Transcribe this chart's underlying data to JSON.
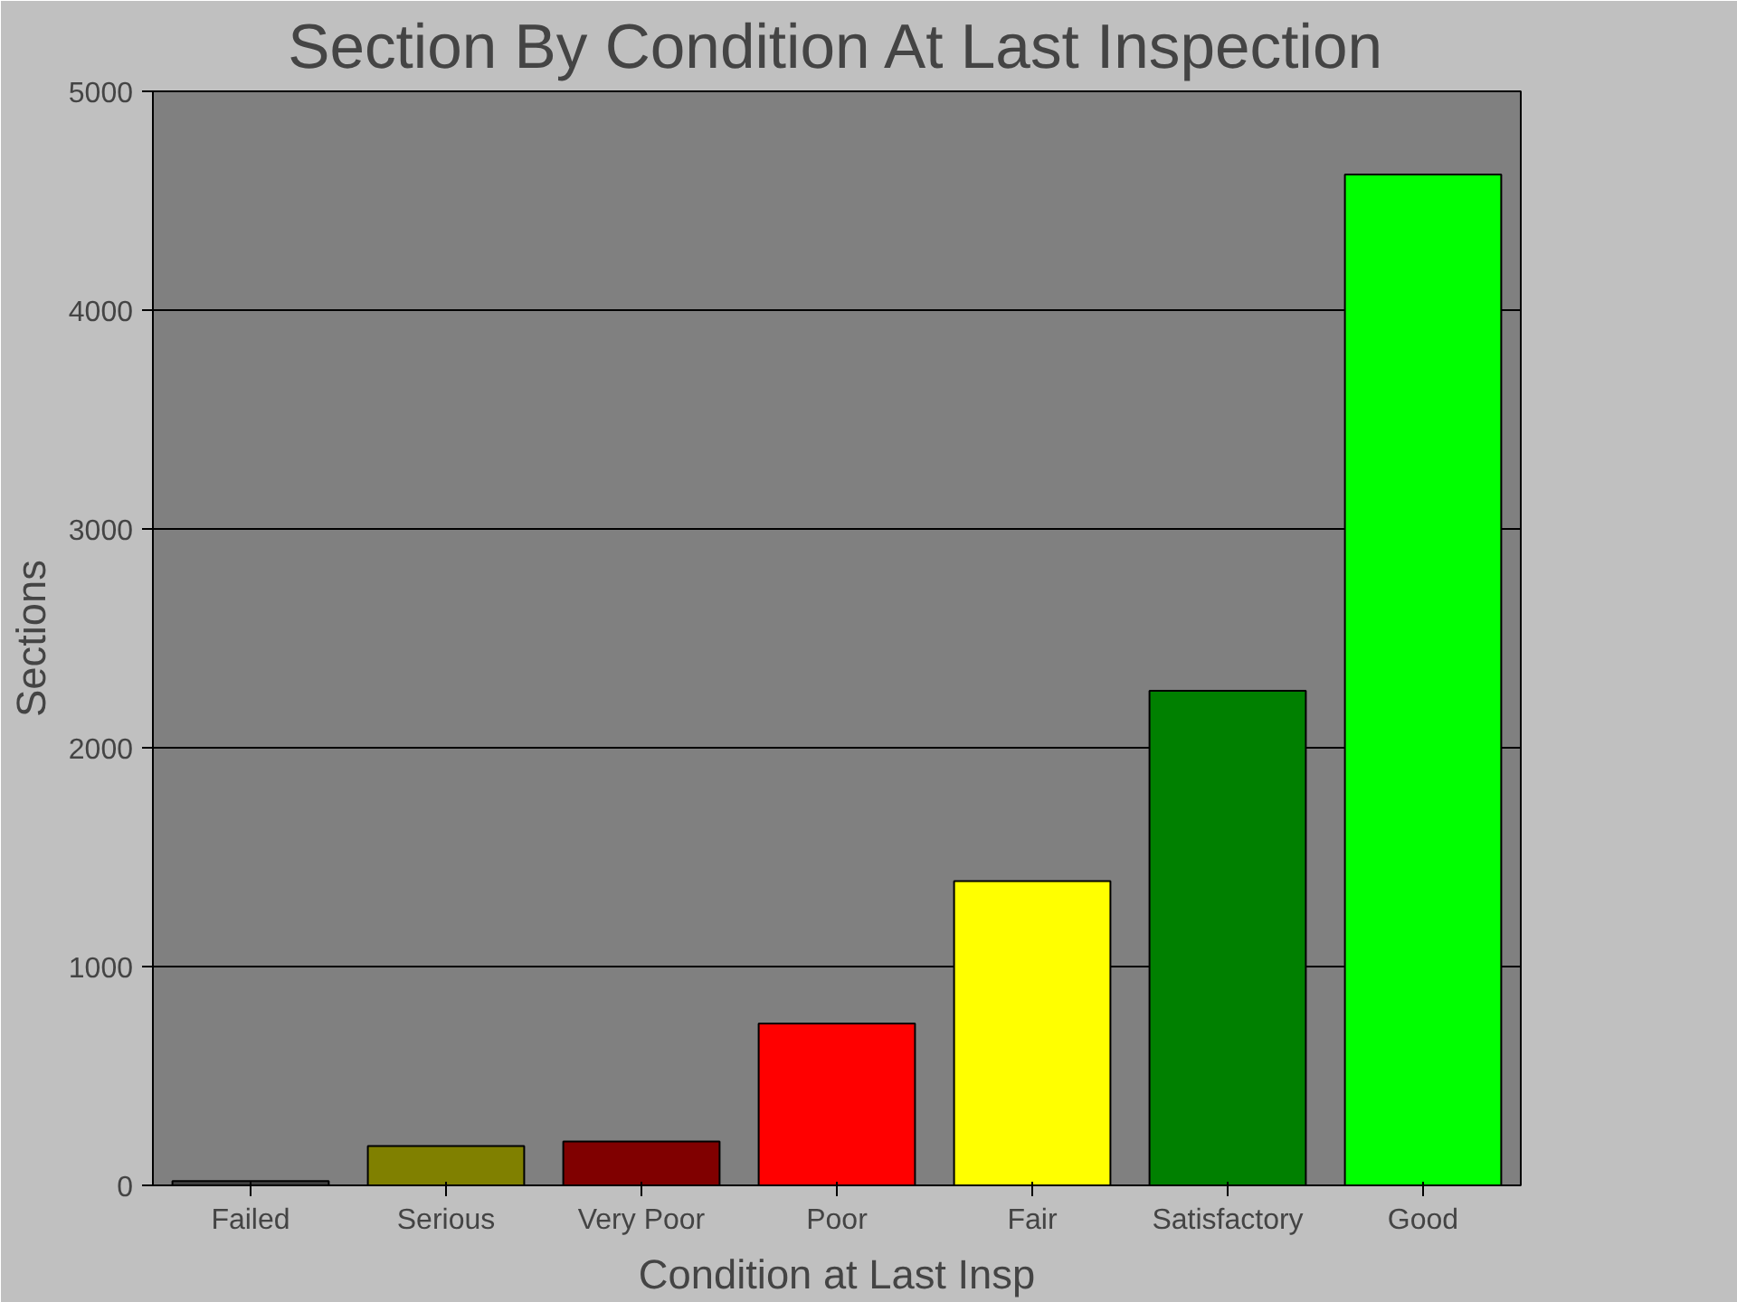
{
  "chart_data": {
    "type": "bar",
    "title": "Section By Condition At Last Inspection",
    "xlabel": "Condition at Last Insp",
    "ylabel": "Sections",
    "categories": [
      "Failed",
      "Serious",
      "Very Poor",
      "Poor",
      "Fair",
      "Satisfactory",
      "Good"
    ],
    "values": [
      20,
      180,
      200,
      740,
      1390,
      2260,
      4620
    ],
    "colors": [
      "#404040",
      "#808000",
      "#800000",
      "#ff0000",
      "#ffff00",
      "#008000",
      "#00ff00"
    ],
    "ylim": [
      0,
      5000
    ],
    "yticks": [
      0,
      1000,
      2000,
      3000,
      4000,
      5000
    ],
    "grid": "y"
  }
}
